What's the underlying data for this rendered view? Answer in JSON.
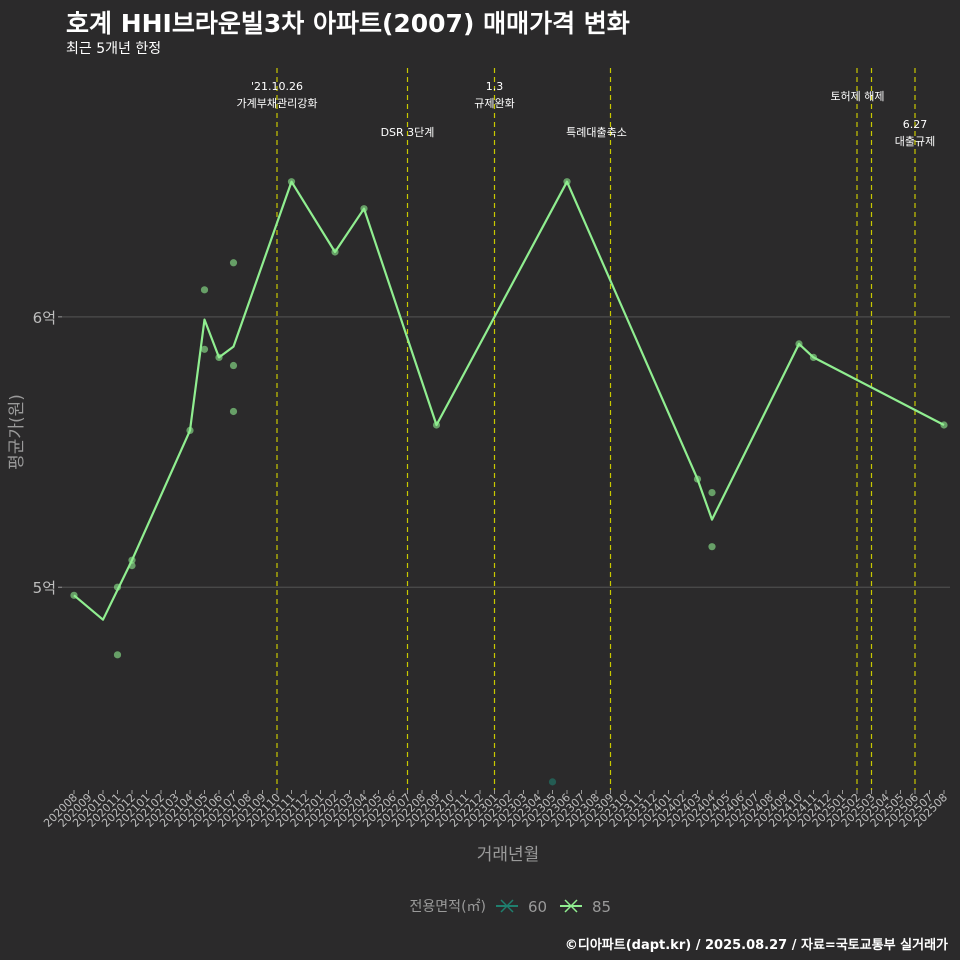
{
  "page": {
    "title": "호계 HHI브라운빌3차 아파트(2007) 매매가격 변화",
    "subtitle": "최근 5개년 한정",
    "caption": "©디아파트(dapt.kr) / 2025.08.27 / 자료=국토교통부 실거래가"
  },
  "colors": {
    "background": "#2b2a2b",
    "grid": "#4d4c4d",
    "vline": "#c8c800",
    "series_60": "#1f7f6e",
    "series_85": "#90ee90",
    "axis_text": "#bdbdbd"
  },
  "chart_data": {
    "type": "line",
    "xlabel": "거래년월",
    "ylabel": "평균가(원)",
    "ylim": [
      4.25,
      6.95
    ],
    "y_ticks": [
      {
        "value": 5,
        "label": "5억"
      },
      {
        "value": 6,
        "label": "6억"
      }
    ],
    "grid": true,
    "legend_position": "bottom",
    "legend": {
      "title": "전용면적(㎡)",
      "entries": [
        "60",
        "85"
      ]
    },
    "categories": [
      "202008",
      "202009",
      "202010",
      "202011",
      "202012",
      "202101",
      "202102",
      "202103",
      "202104",
      "202105",
      "202106",
      "202107",
      "202108",
      "202109",
      "202110",
      "202111",
      "202112",
      "202201",
      "202202",
      "202203",
      "202204",
      "202205",
      "202206",
      "202207",
      "202208",
      "202209",
      "202210",
      "202211",
      "202212",
      "202301",
      "202302",
      "202303",
      "202304",
      "202305",
      "202306",
      "202307",
      "202308",
      "202309",
      "202310",
      "202311",
      "202312",
      "202401",
      "202402",
      "202403",
      "202404",
      "202405",
      "202406",
      "202407",
      "202408",
      "202409",
      "202410",
      "202411",
      "202412",
      "202501",
      "202502",
      "202503",
      "202504",
      "202505",
      "202506",
      "202507",
      "202508"
    ],
    "series": [
      {
        "name": "85",
        "line": [
          [
            "202008",
            4.97
          ],
          [
            "202010",
            4.88
          ],
          [
            "202012",
            5.1
          ],
          [
            "202104",
            5.58
          ],
          [
            "202105",
            5.99
          ],
          [
            "202106",
            5.85
          ],
          [
            "202107",
            5.89
          ],
          [
            "202111",
            6.5
          ],
          [
            "202202",
            6.24
          ],
          [
            "202204",
            6.4
          ],
          [
            "202209",
            5.6
          ],
          [
            "202306",
            6.5
          ],
          [
            "202403",
            5.4
          ],
          [
            "202404",
            5.25
          ],
          [
            "202410",
            5.9
          ],
          [
            "202411",
            5.85
          ],
          [
            "202508",
            5.6
          ]
        ],
        "points": [
          [
            "202008",
            4.97
          ],
          [
            "202011",
            5.0
          ],
          [
            "202011",
            4.75
          ],
          [
            "202012",
            5.08
          ],
          [
            "202012",
            5.1
          ],
          [
            "202104",
            5.58
          ],
          [
            "202105",
            5.88
          ],
          [
            "202105",
            6.1
          ],
          [
            "202106",
            5.85
          ],
          [
            "202107",
            6.2
          ],
          [
            "202107",
            5.82
          ],
          [
            "202107",
            5.65
          ],
          [
            "202111",
            6.5
          ],
          [
            "202202",
            6.24
          ],
          [
            "202204",
            6.4
          ],
          [
            "202209",
            5.6
          ],
          [
            "202306",
            6.5
          ],
          [
            "202403",
            5.4
          ],
          [
            "202404",
            5.35
          ],
          [
            "202404",
            5.15
          ],
          [
            "202410",
            5.9
          ],
          [
            "202411",
            5.85
          ],
          [
            "202508",
            5.6
          ]
        ]
      },
      {
        "name": "60",
        "line": [],
        "points": [
          [
            "202305",
            4.28
          ]
        ]
      }
    ],
    "events": [
      {
        "x": "202110",
        "lines": [
          "'21.10.26",
          "가계부채관리강화"
        ],
        "level": 0
      },
      {
        "x": "202207",
        "lines": [
          "DSR 3단계"
        ],
        "level": 1
      },
      {
        "x": "202301",
        "lines": [
          "1.3",
          "규제완화"
        ],
        "level": 0
      },
      {
        "x": "202309",
        "lines": [
          "특례대출축소"
        ],
        "level": 1
      },
      {
        "x": "202502",
        "lines": [],
        "level": 0
      },
      {
        "x": "202503",
        "lines": [
          "토허제 해제"
        ],
        "level": 0
      },
      {
        "x": "202506",
        "lines": [
          "6.27",
          "대출규제"
        ],
        "level": 2
      }
    ]
  }
}
